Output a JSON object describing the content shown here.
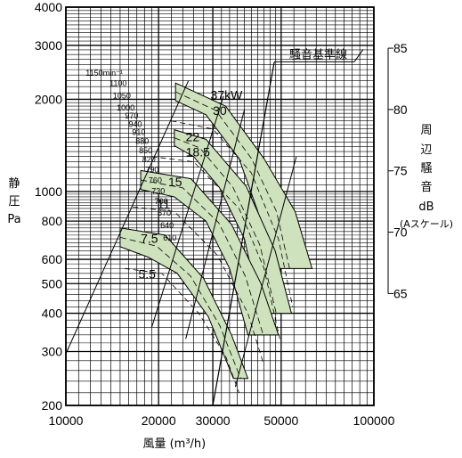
{
  "chart_data": {
    "type": "line",
    "xlabel": "風量 (m³/h)",
    "ylabel_lines": [
      "静",
      "圧",
      "Pa"
    ],
    "x_scale": "log",
    "y_scale": "log",
    "xlim": [
      10000,
      100000
    ],
    "ylim": [
      200,
      4000
    ],
    "x_ticks": [
      10000,
      20000,
      30000,
      50000,
      100000
    ],
    "x_tick_labels": [
      "10000",
      "20000",
      "30000",
      "50000",
      "100000"
    ],
    "y_ticks": [
      200,
      300,
      400,
      500,
      600,
      800,
      1000,
      2000,
      3000,
      4000
    ],
    "y_tick_labels": [
      "200",
      "300",
      "400",
      "500",
      "600",
      "800",
      "1000",
      "2000",
      "3000",
      "4000"
    ],
    "db_axis": {
      "title_lines": [
        "周",
        "辺",
        "騒",
        "音",
        "dB",
        "(Aスケール)"
      ],
      "ticks": [
        65,
        70,
        75,
        80,
        85
      ],
      "tick_labels": [
        "65",
        "70",
        "75",
        "80",
        "85"
      ]
    },
    "noise_baseline_label": "騒音基準線",
    "grid": true,
    "color": "#cfe2be",
    "rpm_labels": [
      {
        "label": "1150min⁻¹",
        "pressure": 2450
      },
      {
        "label": "1100",
        "pressure": 2270
      },
      {
        "label": "1050",
        "pressure": 2070
      },
      {
        "label": "1000",
        "pressure": 1890
      },
      {
        "label": "970",
        "pressure": 1780
      },
      {
        "label": "940",
        "pressure": 1670
      },
      {
        "label": "910",
        "pressure": 1570
      },
      {
        "label": "880",
        "pressure": 1470
      },
      {
        "label": "850",
        "pressure": 1370
      },
      {
        "label": "820",
        "pressure": 1280
      },
      {
        "label": "790",
        "pressure": 1185
      },
      {
        "label": "760",
        "pressure": 1095
      },
      {
        "label": "730",
        "pressure": 1010
      },
      {
        "label": "700",
        "pressure": 935
      },
      {
        "label": "670",
        "pressure": 855
      },
      {
        "label": "640",
        "pressure": 780
      },
      {
        "label": "610",
        "pressure": 710
      }
    ],
    "series": [
      {
        "name": "37kW",
        "label_at": [
          29500,
          2000
        ],
        "top": [
          [
            22700,
            2260
          ],
          [
            33000,
            1900
          ],
          [
            44000,
            1280
          ],
          [
            55500,
            860
          ],
          [
            63000,
            560
          ]
        ],
        "bottom": [
          [
            45000,
            560
          ],
          [
            42000,
            860
          ],
          [
            36500,
            1280
          ],
          [
            28500,
            1780
          ],
          [
            22700,
            1980
          ]
        ]
      },
      {
        "name": "22",
        "label_at": [
          24500,
          1460
        ],
        "top": [
          [
            22500,
            1590
          ],
          [
            28500,
            1480
          ],
          [
            38500,
            1040
          ],
          [
            47800,
            640
          ],
          [
            54000,
            400
          ]
        ],
        "bottom": [
          [
            43000,
            400
          ],
          [
            38000,
            700
          ],
          [
            31500,
            1030
          ],
          [
            26000,
            1300
          ],
          [
            22500,
            1410
          ]
        ]
      },
      {
        "name": "15",
        "label_at": [
          21500,
          1040
        ],
        "top": [
          [
            17500,
            1170
          ],
          [
            25500,
            1100
          ],
          [
            34500,
            780
          ],
          [
            43000,
            500
          ],
          [
            49000,
            340
          ]
        ],
        "bottom": [
          [
            39000,
            340
          ],
          [
            34000,
            560
          ],
          [
            28500,
            800
          ],
          [
            22500,
            960
          ],
          [
            17500,
            1015
          ]
        ]
      },
      {
        "name": "7.5",
        "label_at": [
          17500,
          680
        ],
        "top": [
          [
            15000,
            760
          ],
          [
            21000,
            720
          ],
          [
            28000,
            520
          ],
          [
            34500,
            340
          ],
          [
            39000,
            245
          ]
        ],
        "bottom": [
          [
            35000,
            245
          ],
          [
            29000,
            390
          ],
          [
            23000,
            540
          ],
          [
            18500,
            610
          ],
          [
            15000,
            660
          ]
        ]
      }
    ],
    "dashed_labels": [
      {
        "label": "30",
        "at": [
          30000,
          1780
        ]
      },
      {
        "label": "18.5",
        "at": [
          24500,
          1300
        ]
      },
      {
        "label": "11",
        "at": [
          19800,
          880
        ]
      },
      {
        "label": "5.5",
        "at": [
          17200,
          520
        ]
      }
    ]
  }
}
